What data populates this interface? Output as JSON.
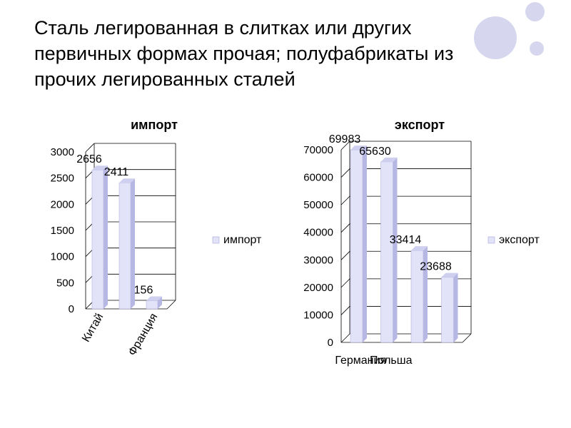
{
  "slide": {
    "title": "Сталь легированная в слитках или других первичных формах прочая; полуфабрикаты из прочих легированных сталей"
  },
  "colors": {
    "bar_front": "#e2e2f8",
    "bar_side": "#b7b7e3",
    "bar_top": "#cfcff0",
    "decor": "#d6d6ef",
    "grid": "#000000"
  },
  "chart_data": [
    {
      "type": "bar",
      "title": "импорт",
      "categories": [
        "Китай",
        "",
        "Франция"
      ],
      "series": [
        {
          "name": "импорт",
          "values": [
            2656,
            2411,
            156
          ]
        }
      ],
      "data_labels": [
        "2656",
        "2411",
        "156"
      ],
      "yticks": [
        "0",
        "500",
        "1000",
        "1500",
        "2000",
        "2500",
        "3000"
      ],
      "ylim": [
        0,
        3000
      ],
      "grid": true,
      "legend": "right",
      "xlabel_rotation": -60
    },
    {
      "type": "bar",
      "title": "экспорт",
      "categories": [
        "Германия",
        "Польша",
        "",
        ""
      ],
      "series": [
        {
          "name": "экспорт",
          "values": [
            69983,
            65630,
            33414,
            23688
          ]
        }
      ],
      "data_labels": [
        "69983",
        "65630",
        "33414",
        "23688"
      ],
      "yticks": [
        "0",
        "10000",
        "20000",
        "30000",
        "40000",
        "50000",
        "60000",
        "70000"
      ],
      "ylim": [
        0,
        70000
      ],
      "grid": true,
      "legend": "right",
      "xlabel_rotation": 0
    }
  ]
}
